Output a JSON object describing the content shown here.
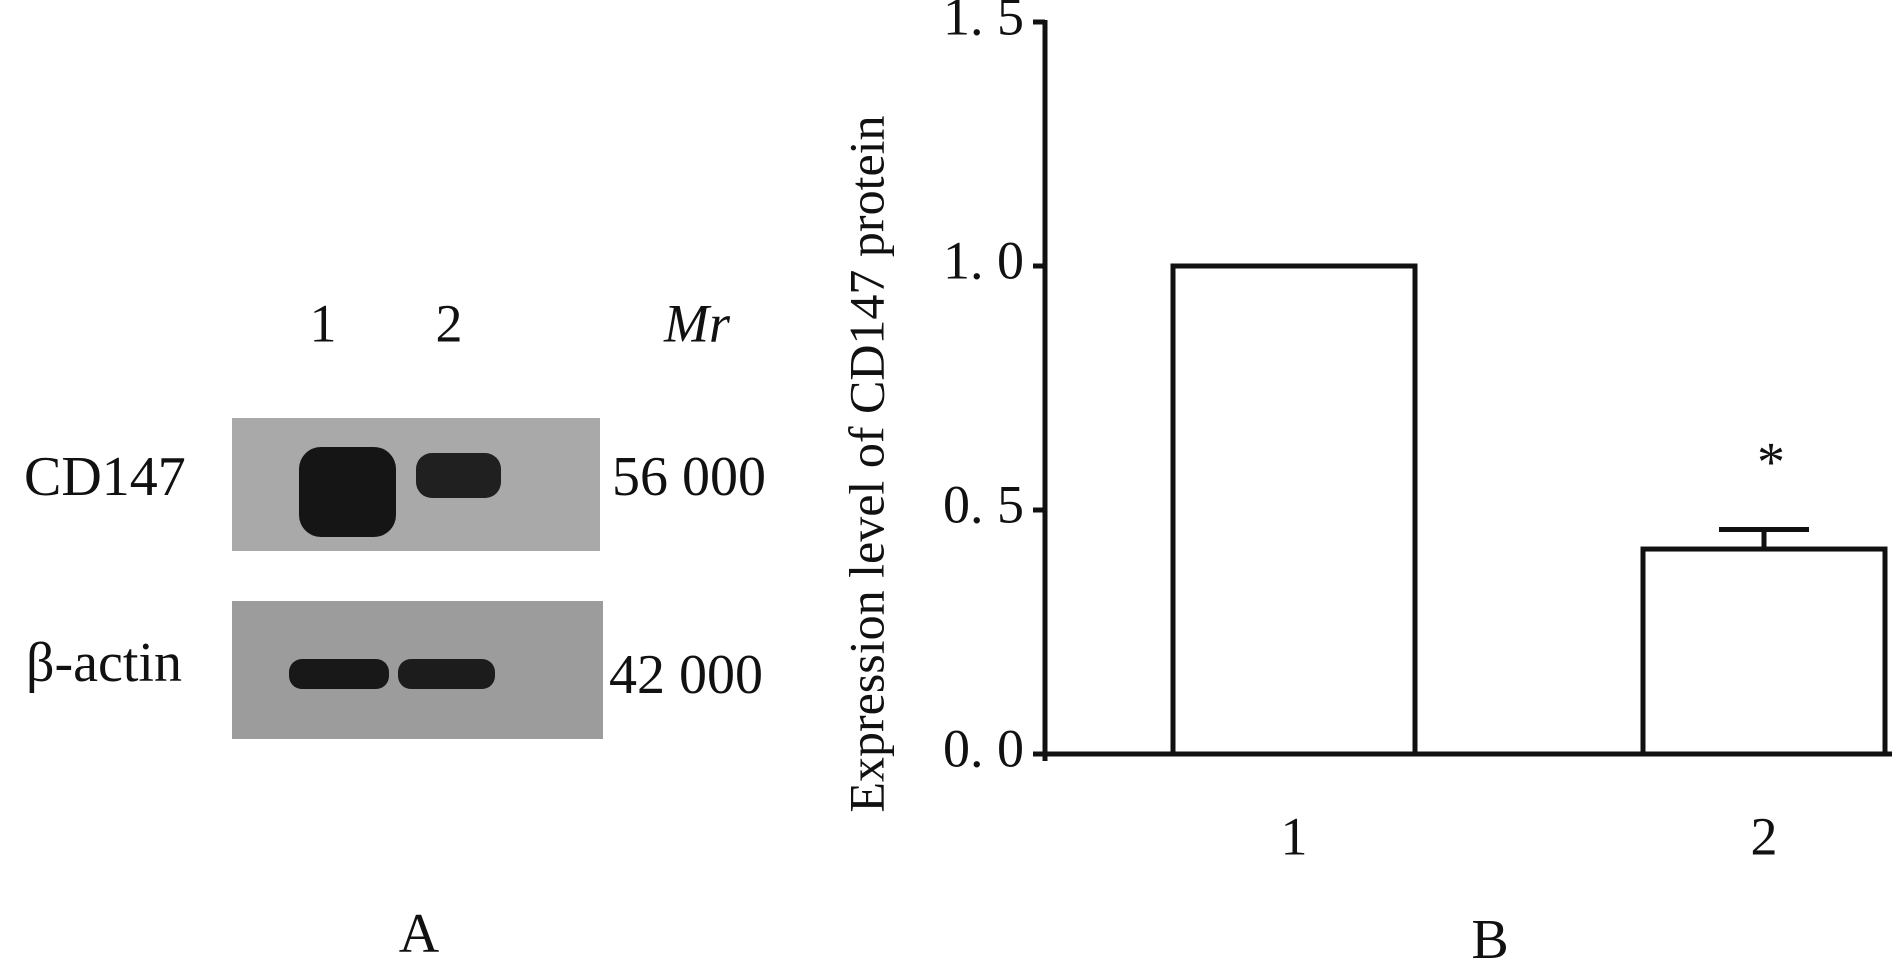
{
  "blot": {
    "lanes": [
      "1",
      "2"
    ],
    "mr_label": "Mr",
    "panel_label": "A",
    "rows": [
      {
        "label": "CD147",
        "mr": "56 000"
      },
      {
        "label": "β-actin",
        "mr": "42 000"
      }
    ]
  },
  "chart_data": {
    "type": "bar",
    "ylabel": "Expression level of CD147 protein",
    "panel_label": "B",
    "categories": [
      "1",
      "2"
    ],
    "series": [
      {
        "values": [
          1.0,
          0.42
        ],
        "errors": [
          null,
          0.04
        ],
        "color": "#ffffff"
      }
    ],
    "annotation": "*",
    "ylim": [
      0,
      1.5
    ],
    "yticks": [
      {
        "value": 0,
        "label": "0. 0"
      },
      {
        "value": 0.5,
        "label": "0. 5"
      },
      {
        "value": 1.0,
        "label": "1. 0"
      },
      {
        "value": 1.5,
        "label": "1. 5"
      }
    ]
  }
}
